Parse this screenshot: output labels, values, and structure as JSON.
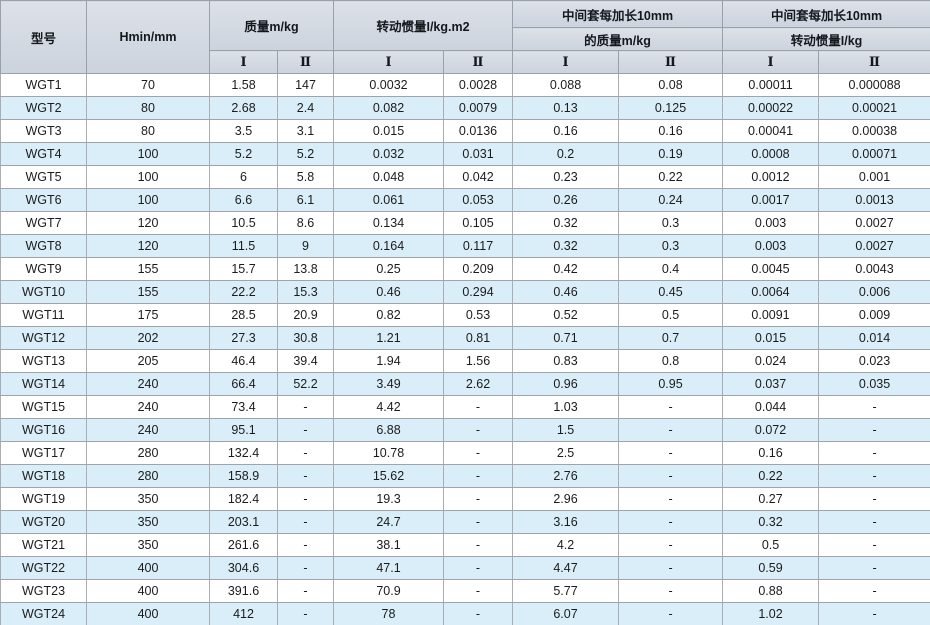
{
  "table": {
    "header": {
      "model": "型号",
      "hmin": "Hmin/mm",
      "mass_group": "质量m/kg",
      "inertia_group": "转动惯量I/kg.m2",
      "ext_mass": {
        "line1": "中间套每加长10mm",
        "line2": "的质量m/kg"
      },
      "ext_inertia": {
        "line1": "中间套每加长10mm",
        "line2": "转动惯量I/kg"
      },
      "sub_col_1": "Ⅰ",
      "sub_col_2": "Ⅱ"
    },
    "rows": [
      [
        "WGT1",
        "70",
        "1.58",
        "147",
        "0.0032",
        "0.0028",
        "0.088",
        "0.08",
        "0.00011",
        "0.000088"
      ],
      [
        "WGT2",
        "80",
        "2.68",
        "2.4",
        "0.082",
        "0.0079",
        "0.13",
        "0.125",
        "0.00022",
        "0.00021"
      ],
      [
        "WGT3",
        "80",
        "3.5",
        "3.1",
        "0.015",
        "0.0136",
        "0.16",
        "0.16",
        "0.00041",
        "0.00038"
      ],
      [
        "WGT4",
        "100",
        "5.2",
        "5.2",
        "0.032",
        "0.031",
        "0.2",
        "0.19",
        "0.0008",
        "0.00071"
      ],
      [
        "WGT5",
        "100",
        "6",
        "5.8",
        "0.048",
        "0.042",
        "0.23",
        "0.22",
        "0.0012",
        "0.001"
      ],
      [
        "WGT6",
        "100",
        "6.6",
        "6.1",
        "0.061",
        "0.053",
        "0.26",
        "0.24",
        "0.0017",
        "0.0013"
      ],
      [
        "WGT7",
        "120",
        "10.5",
        "8.6",
        "0.134",
        "0.105",
        "0.32",
        "0.3",
        "0.003",
        "0.0027"
      ],
      [
        "WGT8",
        "120",
        "11.5",
        "9",
        "0.164",
        "0.117",
        "0.32",
        "0.3",
        "0.003",
        "0.0027"
      ],
      [
        "WGT9",
        "155",
        "15.7",
        "13.8",
        "0.25",
        "0.209",
        "0.42",
        "0.4",
        "0.0045",
        "0.0043"
      ],
      [
        "WGT10",
        "155",
        "22.2",
        "15.3",
        "0.46",
        "0.294",
        "0.46",
        "0.45",
        "0.0064",
        "0.006"
      ],
      [
        "WGT11",
        "175",
        "28.5",
        "20.9",
        "0.82",
        "0.53",
        "0.52",
        "0.5",
        "0.0091",
        "0.009"
      ],
      [
        "WGT12",
        "202",
        "27.3",
        "30.8",
        "1.21",
        "0.81",
        "0.71",
        "0.7",
        "0.015",
        "0.014"
      ],
      [
        "WGT13",
        "205",
        "46.4",
        "39.4",
        "1.94",
        "1.56",
        "0.83",
        "0.8",
        "0.024",
        "0.023"
      ],
      [
        "WGT14",
        "240",
        "66.4",
        "52.2",
        "3.49",
        "2.62",
        "0.96",
        "0.95",
        "0.037",
        "0.035"
      ],
      [
        "WGT15",
        "240",
        "73.4",
        "-",
        "4.42",
        "-",
        "1.03",
        "-",
        "0.044",
        "-"
      ],
      [
        "WGT16",
        "240",
        "95.1",
        "-",
        "6.88",
        "-",
        "1.5",
        "-",
        "0.072",
        "-"
      ],
      [
        "WGT17",
        "280",
        "132.4",
        "-",
        "10.78",
        "-",
        "2.5",
        "-",
        "0.16",
        "-"
      ],
      [
        "WGT18",
        "280",
        "158.9",
        "-",
        "15.62",
        "-",
        "2.76",
        "-",
        "0.22",
        "-"
      ],
      [
        "WGT19",
        "350",
        "182.4",
        "-",
        "19.3",
        "-",
        "2.96",
        "-",
        "0.27",
        "-"
      ],
      [
        "WGT20",
        "350",
        "203.1",
        "-",
        "24.7",
        "-",
        "3.16",
        "-",
        "0.32",
        "-"
      ],
      [
        "WGT21",
        "350",
        "261.6",
        "-",
        "38.1",
        "-",
        "4.2",
        "-",
        "0.5",
        "-"
      ],
      [
        "WGT22",
        "400",
        "304.6",
        "-",
        "47.1",
        "-",
        "4.47",
        "-",
        "0.59",
        "-"
      ],
      [
        "WGT23",
        "400",
        "391.6",
        "-",
        "70.9",
        "-",
        "5.77",
        "-",
        "0.88",
        "-"
      ],
      [
        "WGT24",
        "400",
        "412",
        "-",
        "78",
        "-",
        "6.07",
        "-",
        "1.02",
        "-"
      ]
    ],
    "colors": {
      "header_bg": "#d3d9e2",
      "row_alt_bg": "#d9eef8",
      "row_bg": "#ffffff",
      "border": "#a8aeb4"
    }
  }
}
